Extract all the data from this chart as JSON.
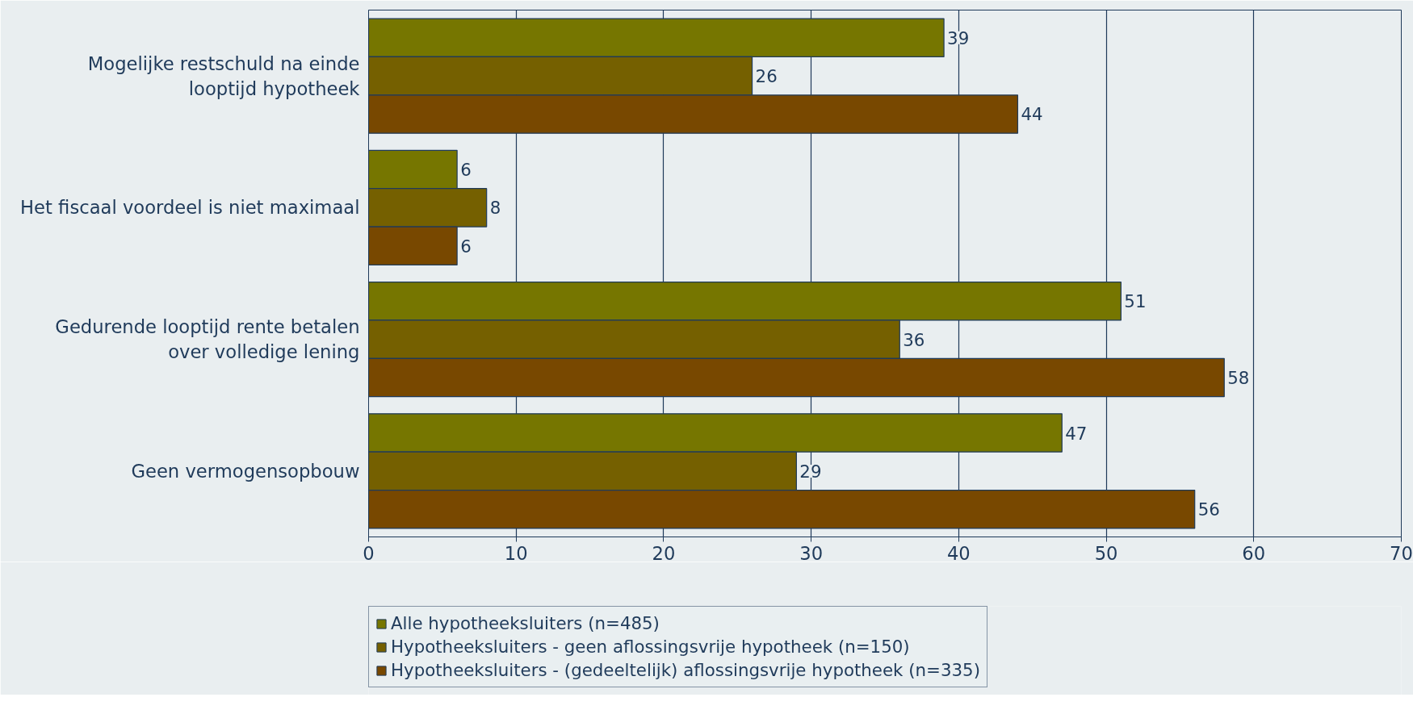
{
  "chart_data": {
    "type": "bar",
    "orientation": "horizontal",
    "categories": [
      "Mogelijke restschuld na einde looptijd hypotheek",
      "Het fiscaal voordeel is niet maximaal",
      "Gedurende looptijd rente betalen over volledige lening",
      "Geen vermogensopbouw"
    ],
    "series": [
      {
        "name": "Alle hypotheeksluiters (n=485)",
        "color": "#767600",
        "values": [
          39,
          6,
          51,
          47
        ]
      },
      {
        "name": "Hypotheeksluiters - geen aflossingsvrije hypotheek (n=150)",
        "color": "#756000",
        "values": [
          26,
          8,
          36,
          29
        ]
      },
      {
        "name": "Hypotheeksluiters - (gedeeltelijk) aflossingsvrije hypotheek (n=335)",
        "color": "#784800",
        "values": [
          44,
          6,
          58,
          56
        ]
      }
    ],
    "xlim": [
      0,
      70
    ],
    "xticks": [
      0,
      10,
      20,
      30,
      40,
      50,
      60,
      70
    ],
    "grid": "x",
    "legend": "bottom",
    "data_labels": true
  }
}
